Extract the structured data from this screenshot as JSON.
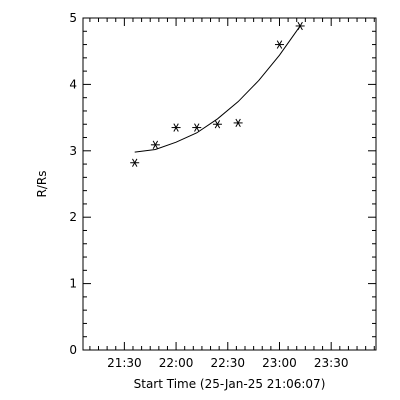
{
  "chart_data": {
    "type": "scatter",
    "title": "",
    "xlabel": "Start Time (25-Jan-25 21:06:07)",
    "ylabel": "R/Rs",
    "x_tick_labels": [
      "21:30",
      "22:00",
      "22:30",
      "23:00",
      "23:30"
    ],
    "x_tick_times": [
      "21:30",
      "22:00",
      "22:30",
      "23:00",
      "23:30"
    ],
    "xlim": [
      "21:06",
      "23:56"
    ],
    "ylim": [
      0,
      5
    ],
    "y_ticks": [
      0,
      1,
      2,
      3,
      4,
      5
    ],
    "grid": false,
    "legend": "none",
    "series": [
      {
        "marker": "asterisk",
        "points": [
          {
            "time": "21:36",
            "value": 2.82
          },
          {
            "time": "21:48",
            "value": 3.09
          },
          {
            "time": "22:00",
            "value": 3.35
          },
          {
            "time": "22:12",
            "value": 3.35
          },
          {
            "time": "22:24",
            "value": 3.4
          },
          {
            "time": "22:36",
            "value": 3.42
          },
          {
            "time": "23:00",
            "value": 4.6
          },
          {
            "time": "23:12",
            "value": 4.88
          }
        ]
      }
    ],
    "fit_curve": {
      "points": [
        {
          "time": "21:36",
          "value": 2.98
        },
        {
          "time": "21:48",
          "value": 3.02
        },
        {
          "time": "22:00",
          "value": 3.13
        },
        {
          "time": "22:12",
          "value": 3.27
        },
        {
          "time": "22:24",
          "value": 3.48
        },
        {
          "time": "22:36",
          "value": 3.74
        },
        {
          "time": "22:48",
          "value": 4.06
        },
        {
          "time": "23:00",
          "value": 4.44
        },
        {
          "time": "23:12",
          "value": 4.88
        }
      ]
    }
  }
}
